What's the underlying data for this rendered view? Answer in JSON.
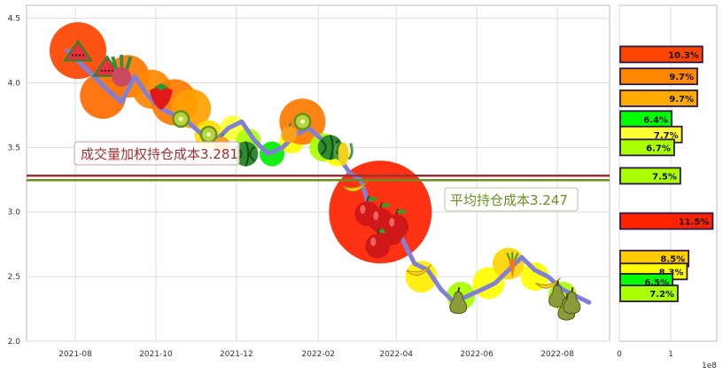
{
  "chart_data": [
    {
      "type": "line",
      "title": "",
      "xlabel": "",
      "ylabel": "",
      "x_ticks": [
        "2021-08",
        "2021-10",
        "2021-12",
        "2022-02",
        "2022-04",
        "2022-06",
        "2022-08"
      ],
      "y_ticks": [
        "2.0",
        "2.5",
        "3.0",
        "3.5",
        "4.0",
        "4.5"
      ],
      "ylim": [
        2.0,
        4.6
      ],
      "grid": true,
      "line_color": "#8080d8",
      "series": [
        {
          "x": [
            "2021-07-26",
            "2021-08-05",
            "2021-08-15",
            "2021-08-25",
            "2021-09-05",
            "2021-09-15",
            "2021-09-25",
            "2021-10-05",
            "2021-10-15",
            "2021-10-25",
            "2021-11-05",
            "2021-11-15",
            "2021-11-25",
            "2021-12-05",
            "2021-12-15",
            "2021-12-25",
            "2022-01-05",
            "2022-01-15",
            "2022-01-25",
            "2022-02-05",
            "2022-02-15",
            "2022-02-25",
            "2022-03-05",
            "2022-03-15",
            "2022-03-25",
            "2022-04-05",
            "2022-04-15",
            "2022-04-25",
            "2022-05-05",
            "2022-05-15",
            "2022-05-25",
            "2022-06-05",
            "2022-06-15",
            "2022-06-25",
            "2022-07-05",
            "2022-07-15",
            "2022-07-25",
            "2022-08-05",
            "2022-08-15",
            "2022-08-25"
          ],
          "values": [
            4.25,
            4.15,
            4.05,
            3.95,
            3.85,
            4.05,
            3.9,
            3.8,
            3.75,
            3.7,
            3.6,
            3.55,
            3.65,
            3.7,
            3.55,
            3.45,
            3.5,
            3.6,
            3.65,
            3.55,
            3.45,
            3.3,
            3.25,
            2.95,
            2.9,
            2.8,
            2.6,
            2.55,
            2.4,
            2.3,
            2.35,
            2.4,
            2.45,
            2.55,
            2.65,
            2.55,
            2.5,
            2.4,
            2.35,
            2.3
          ]
        }
      ],
      "bubbles": [
        {
          "x": "2021-08-03",
          "y": 4.25,
          "color": "#ff4400",
          "r": 32
        },
        {
          "x": "2021-08-22",
          "y": 3.9,
          "color": "#ff6a00",
          "r": 26
        },
        {
          "x": "2021-09-10",
          "y": 4.05,
          "color": "#ff7700",
          "r": 24
        },
        {
          "x": "2021-09-28",
          "y": 3.95,
          "color": "#ff8800",
          "r": 22
        },
        {
          "x": "2021-10-15",
          "y": 3.85,
          "color": "#ff7a00",
          "r": 26
        },
        {
          "x": "2021-10-28",
          "y": 3.8,
          "color": "#ffa000",
          "r": 22
        },
        {
          "x": "2021-11-10",
          "y": 3.6,
          "color": "#ffe000",
          "r": 16
        },
        {
          "x": "2021-11-28",
          "y": 3.65,
          "color": "#ffff33",
          "r": 14
        },
        {
          "x": "2021-12-10",
          "y": 3.55,
          "color": "#aaff00",
          "r": 14
        },
        {
          "x": "2021-12-28",
          "y": 3.45,
          "color": "#00ee00",
          "r": 14
        },
        {
          "x": "2022-01-12",
          "y": 3.55,
          "color": "#ffff00",
          "r": 14
        },
        {
          "x": "2022-01-20",
          "y": 3.7,
          "color": "#ff7a00",
          "r": 26
        },
        {
          "x": "2022-02-05",
          "y": 3.5,
          "color": "#aaff00",
          "r": 16
        },
        {
          "x": "2022-02-15",
          "y": 3.45,
          "color": "#ffff00",
          "r": 14
        },
        {
          "x": "2022-03-20",
          "y": 3.0,
          "color": "#ff2200",
          "r": 58
        },
        {
          "x": "2022-04-20",
          "y": 2.5,
          "color": "#ffee00",
          "r": 18
        },
        {
          "x": "2022-05-20",
          "y": 2.35,
          "color": "#aaff00",
          "r": 16
        },
        {
          "x": "2022-06-10",
          "y": 2.45,
          "color": "#ffff00",
          "r": 18
        },
        {
          "x": "2022-06-25",
          "y": 2.6,
          "color": "#ffd700",
          "r": 18
        },
        {
          "x": "2022-07-15",
          "y": 2.5,
          "color": "#ffff00",
          "r": 16
        },
        {
          "x": "2022-08-05",
          "y": 2.35,
          "color": "#aaff00",
          "r": 16
        }
      ],
      "fruits": [
        {
          "x": "2021-08-03",
          "y": 4.22,
          "kind": "watermelon-slice"
        },
        {
          "x": "2021-08-25",
          "y": 4.1,
          "kind": "watermelon-slice"
        },
        {
          "x": "2021-09-05",
          "y": 4.08,
          "kind": "radish"
        },
        {
          "x": "2021-10-05",
          "y": 3.9,
          "kind": "strawberry"
        },
        {
          "x": "2021-10-20",
          "y": 3.72,
          "kind": "kiwi"
        },
        {
          "x": "2021-11-10",
          "y": 3.6,
          "kind": "kiwi"
        },
        {
          "x": "2021-11-20",
          "y": 3.52,
          "kind": "orange"
        },
        {
          "x": "2021-12-08",
          "y": 3.45,
          "kind": "watermelon"
        },
        {
          "x": "2022-01-10",
          "y": 3.6,
          "kind": "orange"
        },
        {
          "x": "2022-01-20",
          "y": 3.7,
          "kind": "kiwi"
        },
        {
          "x": "2022-02-10",
          "y": 3.5,
          "kind": "watermelon"
        },
        {
          "x": "2022-02-20",
          "y": 3.45,
          "kind": "corn"
        },
        {
          "x": "2022-03-01",
          "y": 3.2,
          "kind": "banana"
        },
        {
          "x": "2022-03-10",
          "y": 3.0,
          "kind": "apple"
        },
        {
          "x": "2022-03-20",
          "y": 2.95,
          "kind": "apple"
        },
        {
          "x": "2022-03-28",
          "y": 2.85,
          "kind": "apple"
        },
        {
          "x": "2022-03-18",
          "y": 2.75,
          "kind": "apple"
        },
        {
          "x": "2022-04-01",
          "y": 2.9,
          "kind": "apple"
        },
        {
          "x": "2022-04-18",
          "y": 2.55,
          "kind": "banana"
        },
        {
          "x": "2022-05-18",
          "y": 2.3,
          "kind": "pear"
        },
        {
          "x": "2022-06-28",
          "y": 2.58,
          "kind": "carrot"
        },
        {
          "x": "2022-07-25",
          "y": 2.45,
          "kind": "banana"
        },
        {
          "x": "2022-08-01",
          "y": 2.35,
          "kind": "pear"
        },
        {
          "x": "2022-08-08",
          "y": 2.25,
          "kind": "pear"
        },
        {
          "x": "2022-08-12",
          "y": 2.3,
          "kind": "pear"
        }
      ],
      "reference_lines": [
        {
          "label": "成交量加权持仓成本3.281",
          "value": 3.281,
          "color": "#a03030"
        },
        {
          "label": "平均持仓成本3.247",
          "value": 3.247,
          "color": "#6b8e23"
        }
      ]
    },
    {
      "type": "bar",
      "orientation": "horizontal",
      "title": "",
      "x_ticks": [
        "0",
        "1"
      ],
      "x_exponent": "1e8",
      "bars": [
        {
          "label": "10.3%",
          "value": 1.6,
          "price": 4.22,
          "color": "#ff4400"
        },
        {
          "label": "9.7%",
          "value": 1.5,
          "price": 4.05,
          "color": "#ff8800"
        },
        {
          "label": "9.7%",
          "value": 1.5,
          "price": 3.88,
          "color": "#ffaa00"
        },
        {
          "label": "6.4%",
          "value": 1.0,
          "price": 3.72,
          "color": "#00ff00"
        },
        {
          "label": "7.7%",
          "value": 1.2,
          "price": 3.6,
          "color": "#ffff33"
        },
        {
          "label": "6.7%",
          "value": 1.05,
          "price": 3.5,
          "color": "#aaff00"
        },
        {
          "label": "7.5%",
          "value": 1.17,
          "price": 3.28,
          "color": "#aaff00"
        },
        {
          "label": "11.5%",
          "value": 1.8,
          "price": 2.93,
          "color": "#ff2200"
        },
        {
          "label": "8.5%",
          "value": 1.33,
          "price": 2.64,
          "color": "#ffcc00"
        },
        {
          "label": "8.3%",
          "value": 1.3,
          "price": 2.54,
          "color": "#ffff00"
        },
        {
          "label": "6.5%",
          "value": 1.02,
          "price": 2.46,
          "color": "#00ff00"
        },
        {
          "label": "7.2%",
          "value": 1.12,
          "price": 2.37,
          "color": "#aaff00"
        }
      ]
    }
  ]
}
